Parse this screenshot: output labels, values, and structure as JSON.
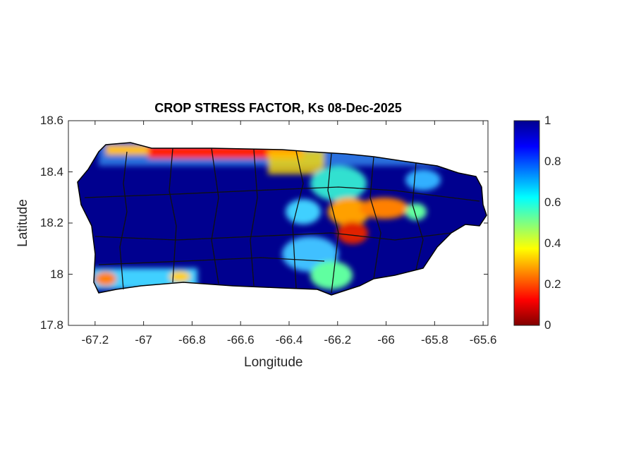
{
  "title": "CROP STRESS FACTOR, Ks  08-Dec-2025",
  "xlabel": "Longitude",
  "ylabel": "Latitude",
  "x_ticks": [
    "-67.2",
    "-67",
    "-66.8",
    "-66.6",
    "-66.4",
    "-66.2",
    "-66",
    "-65.8",
    "-65.6"
  ],
  "y_ticks": [
    "18.6",
    "18.4",
    "18.2",
    "18",
    "17.8"
  ],
  "xlim": [
    -67.31,
    -65.58
  ],
  "ylim": [
    17.8,
    18.6
  ],
  "colorbar": {
    "ticks": [
      "1",
      "0.8",
      "0.6",
      "0.4",
      "0.2",
      "0"
    ],
    "range": [
      0,
      1
    ],
    "colormap": "jet"
  },
  "colors": {
    "land_base": "#00008f",
    "outline": "#000000"
  }
}
